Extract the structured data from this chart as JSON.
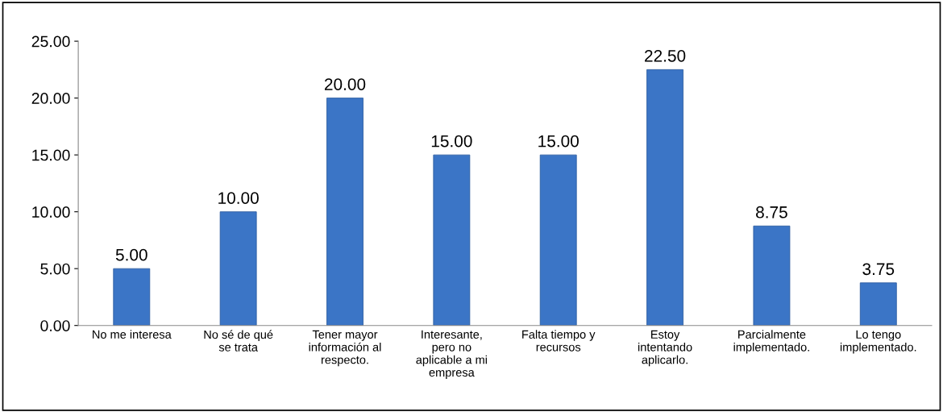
{
  "chart_data": {
    "type": "bar",
    "categories": [
      "No me interesa",
      "No sé de qué\nse trata",
      "Tener mayor\ninformación al\nrespecto.",
      "Interesante,\npero no\naplicable a mi\nempresa",
      "Falta tiempo y\nrecursos",
      "Estoy\nintentando\naplicarlo.",
      "Parcialmente\nimplementado.",
      "Lo tengo\nimplementado."
    ],
    "values": [
      5,
      10,
      20,
      15,
      15,
      22.5,
      8.75,
      3.75
    ],
    "value_labels": [
      "5.00",
      "10.00",
      "20.00",
      "15.00",
      "15.00",
      "22.50",
      "8.75",
      "3.75"
    ],
    "color": "#3b75c6",
    "ylim": [
      0,
      25
    ],
    "yticks": [
      {
        "value": 0,
        "label": "0.00"
      },
      {
        "value": 5,
        "label": "5.00"
      },
      {
        "value": 10,
        "label": "10.00"
      },
      {
        "value": 15,
        "label": "15.00"
      },
      {
        "value": 20,
        "label": "20.00"
      },
      {
        "value": 25,
        "label": "25.00"
      }
    ],
    "grid": false,
    "legend": false
  }
}
